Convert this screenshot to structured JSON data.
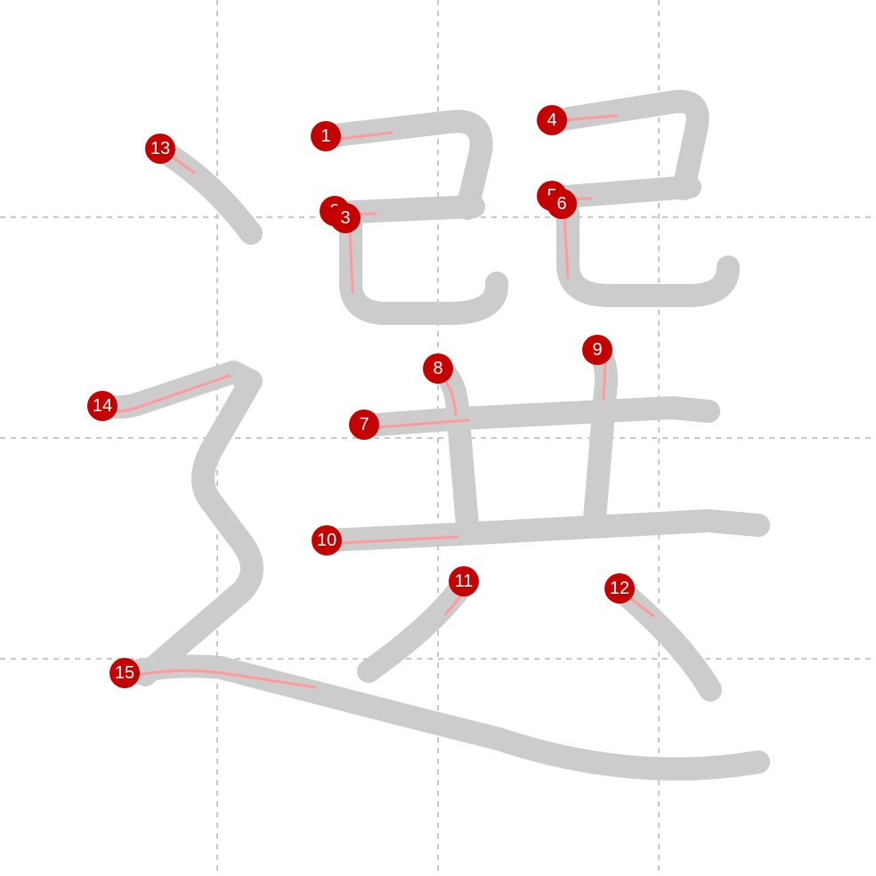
{
  "character": "選",
  "colors": {
    "stroke": "#cccccc",
    "hint": "#ff9a9a",
    "badge": "#c40000",
    "badge_text": "#ffffff",
    "guide": "#c8c8c8"
  },
  "stroke_numbers": [
    {
      "id": "1",
      "label": "1"
    },
    {
      "id": "2",
      "label": "2"
    },
    {
      "id": "3",
      "label": "3"
    },
    {
      "id": "4",
      "label": "4"
    },
    {
      "id": "5",
      "label": "5"
    },
    {
      "id": "6",
      "label": "6"
    },
    {
      "id": "7",
      "label": "7"
    },
    {
      "id": "8",
      "label": "8"
    },
    {
      "id": "9",
      "label": "9"
    },
    {
      "id": "10",
      "label": "10"
    },
    {
      "id": "11",
      "label": "11"
    },
    {
      "id": "12",
      "label": "12"
    },
    {
      "id": "13",
      "label": "13"
    },
    {
      "id": "14",
      "label": "14"
    },
    {
      "id": "15",
      "label": "15"
    }
  ]
}
